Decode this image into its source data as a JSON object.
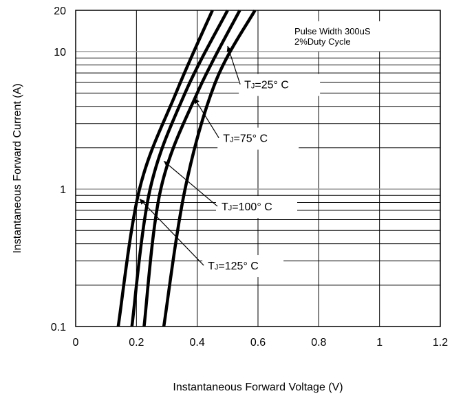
{
  "chart_data": {
    "type": "line",
    "xlabel": "Instantaneous Forward Voltage (V)",
    "ylabel": "Instantaneous Forward Current (A)",
    "xlim": [
      0,
      1.2
    ],
    "ylim": [
      0.1,
      20
    ],
    "yscale": "log",
    "grid": true,
    "x_ticks": [
      0,
      0.2,
      0.4,
      0.6,
      0.8,
      1,
      1.2
    ],
    "x_tick_labels": [
      "0",
      "0.2",
      "0.4",
      "0.6",
      "0.8",
      "1",
      "1.2"
    ],
    "y_ticks": [
      0.1,
      1,
      10,
      20
    ],
    "y_tick_labels": [
      "0.1",
      "1",
      "10",
      "20"
    ],
    "series": [
      {
        "name": "TJ=125° C",
        "points": [
          [
            0.14,
            0.1
          ],
          [
            0.21,
            1
          ],
          [
            0.33,
            5
          ],
          [
            0.45,
            20
          ]
        ]
      },
      {
        "name": "TJ=100° C",
        "points": [
          [
            0.185,
            0.1
          ],
          [
            0.245,
            1
          ],
          [
            0.36,
            5
          ],
          [
            0.5,
            20
          ]
        ]
      },
      {
        "name": "TJ=75° C",
        "points": [
          [
            0.225,
            0.1
          ],
          [
            0.28,
            1
          ],
          [
            0.4,
            5
          ],
          [
            0.54,
            20
          ]
        ]
      },
      {
        "name": "TJ=25° C",
        "points": [
          [
            0.29,
            0.1
          ],
          [
            0.36,
            1
          ],
          [
            0.46,
            6
          ],
          [
            0.59,
            20
          ]
        ]
      }
    ],
    "annotations": {
      "note_line1": "Pulse Width 300uS",
      "note_line2": "2%Duty Cycle",
      "curve_labels": [
        {
          "series": "TJ=25° C",
          "prefix": "T",
          "sub": "J",
          "rest": "=25°  C",
          "x": 0.555,
          "y": 5.4,
          "arrow_to": [
            0.5,
            11
          ]
        },
        {
          "series": "TJ=75° C",
          "prefix": "T",
          "sub": "J",
          "rest": "=75°  C",
          "x": 0.485,
          "y": 2.2,
          "arrow_to": [
            0.39,
            4.6
          ]
        },
        {
          "series": "TJ=100° C",
          "prefix": "T",
          "sub": "J",
          "rest": "=100°  C",
          "x": 0.48,
          "y": 0.7,
          "arrow_to": [
            0.29,
            1.6
          ]
        },
        {
          "series": "TJ=125° C",
          "prefix": "T",
          "sub": "J",
          "rest": "=125°  C",
          "x": 0.435,
          "y": 0.26,
          "arrow_to": [
            0.21,
            0.85
          ]
        }
      ]
    }
  }
}
